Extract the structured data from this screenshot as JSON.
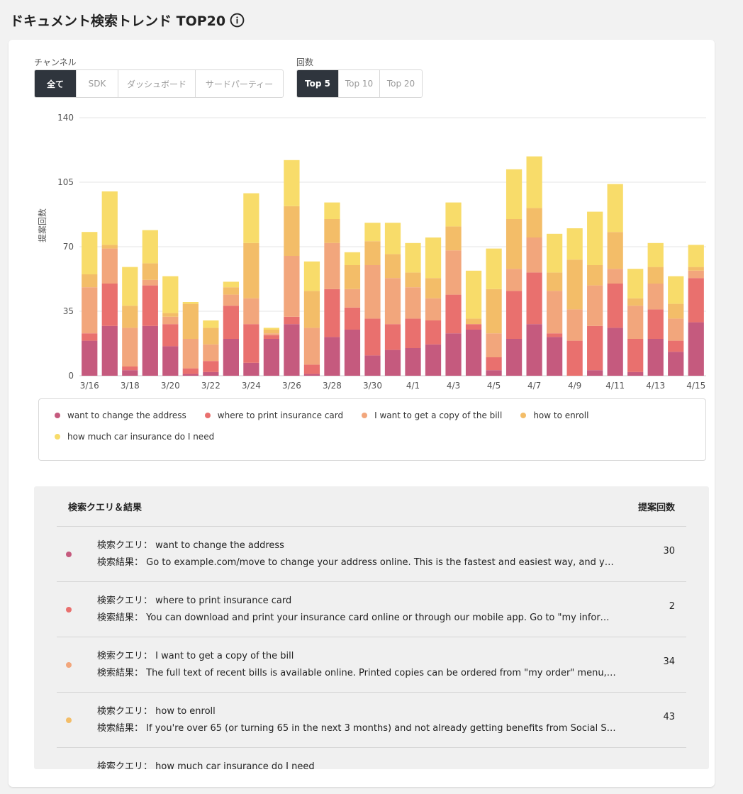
{
  "page": {
    "title": "ドキュメント検索トレンド TOP20"
  },
  "filters": {
    "channel": {
      "label": "チャンネル",
      "options": [
        "全て",
        "SDK",
        "ダッシュボード",
        "サードパーティー"
      ],
      "selected": "全て"
    },
    "count": {
      "label": "回数",
      "options": [
        "Top 5",
        "Top 10",
        "Top 20"
      ],
      "selected": "Top 5"
    }
  },
  "colors": {
    "series": [
      "#c55a7e",
      "#e9706e",
      "#f2a67c",
      "#f3bd68",
      "#f8dc6a"
    ],
    "active_button": "#2f353d",
    "grid": "#e6e6e6"
  },
  "chart_data": {
    "type": "bar",
    "stacked": true,
    "ylabel": "提案回数",
    "xlabel": "",
    "ylim": [
      0,
      140
    ],
    "yticks": [
      0,
      35,
      70,
      105,
      140
    ],
    "grid": true,
    "legend_position": "bottom",
    "categories": [
      "3/16",
      "3/17",
      "3/18",
      "3/19",
      "3/20",
      "3/21",
      "3/22",
      "3/23",
      "3/24",
      "3/25",
      "3/26",
      "3/27",
      "3/28",
      "3/29",
      "3/30",
      "3/31",
      "4/1",
      "4/2",
      "4/3",
      "4/4",
      "4/5",
      "4/6",
      "4/7",
      "4/8",
      "4/9",
      "4/10",
      "4/11",
      "4/12",
      "4/13",
      "4/14",
      "4/15"
    ],
    "xtick_labels": [
      "3/16",
      "3/18",
      "3/20",
      "3/22",
      "3/24",
      "3/26",
      "3/28",
      "3/30",
      "4/1",
      "4/3",
      "4/5",
      "4/7",
      "4/9",
      "4/11",
      "4/13",
      "4/15"
    ],
    "series": [
      {
        "name": "want to change the address",
        "values": [
          19,
          27,
          3,
          27,
          16,
          1,
          2,
          20,
          7,
          20,
          28,
          1,
          21,
          25,
          11,
          14,
          15,
          17,
          23,
          25,
          3,
          20,
          28,
          21,
          0,
          3,
          26,
          2,
          20,
          13,
          29
        ]
      },
      {
        "name": "where to print insurance card",
        "values": [
          4,
          23,
          2,
          22,
          12,
          3,
          6,
          18,
          21,
          2,
          4,
          5,
          26,
          12,
          20,
          14,
          16,
          13,
          21,
          3,
          7,
          26,
          28,
          2,
          19,
          24,
          24,
          18,
          16,
          6,
          24
        ]
      },
      {
        "name": "I want to get a copy of the bill",
        "values": [
          25,
          19,
          21,
          3,
          4,
          16,
          9,
          6,
          14,
          1,
          33,
          20,
          25,
          10,
          29,
          25,
          17,
          12,
          24,
          0,
          13,
          12,
          19,
          23,
          17,
          22,
          8,
          18,
          14,
          12,
          4
        ]
      },
      {
        "name": "how to enroll",
        "values": [
          7,
          2,
          12,
          9,
          2,
          19,
          9,
          4,
          30,
          2,
          27,
          20,
          13,
          13,
          13,
          13,
          8,
          11,
          13,
          3,
          24,
          27,
          16,
          10,
          27,
          11,
          20,
          4,
          9,
          8,
          2
        ]
      },
      {
        "name": "how much car insurance do I need",
        "values": [
          23,
          29,
          21,
          18,
          20,
          1,
          4,
          3,
          27,
          1,
          25,
          16,
          9,
          7,
          10,
          17,
          16,
          22,
          13,
          26,
          22,
          27,
          28,
          21,
          17,
          29,
          26,
          16,
          13,
          15,
          12
        ]
      }
    ]
  },
  "table": {
    "header_query": "検索クエリ＆結果",
    "header_count": "提案回数",
    "query_prefix": "検索クエリ：",
    "result_prefix": "検索結果：",
    "rows": [
      {
        "query": "want to change the address",
        "result": "Go to example.com/move to change your address online. This is the fastest and easiest way, and you...",
        "count": "30"
      },
      {
        "query": "where to print insurance card",
        "result": "You can download and print your insurance card online or through our mobile app. Go to \"my informa...",
        "count": "2"
      },
      {
        "query": "I want to get a copy of the bill",
        "result": "The full text of recent bills is available online. Printed copies can be ordered from \"my order\" menu, or...",
        "count": "34"
      },
      {
        "query": "how to enroll",
        "result": "If you're over 65 (or turning 65 in the next 3 months) and not already getting benefits from Social Sec...",
        "count": "43"
      },
      {
        "query": "how much car insurance do I need",
        "result": "",
        "count": ""
      }
    ]
  }
}
